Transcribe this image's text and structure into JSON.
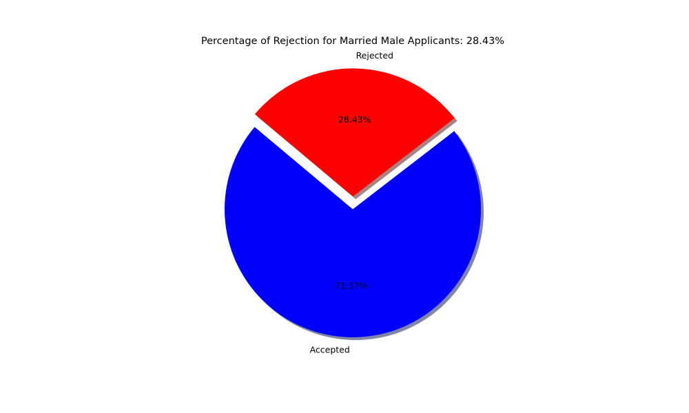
{
  "chart_data": {
    "type": "pie",
    "title": "Percentage of Rejection for Married Male Applicants: 28.43%",
    "slices": [
      {
        "label": "Accepted",
        "value": 71.57,
        "pct_label": "71.57%",
        "color": "#0000ff",
        "shadow_color": "#555b8a",
        "exploded": false
      },
      {
        "label": "Rejected",
        "value": 28.43,
        "pct_label": "28.43%",
        "color": "#ff0000",
        "shadow_color": "#8a5a5a",
        "exploded": true
      }
    ],
    "shadow": true
  }
}
